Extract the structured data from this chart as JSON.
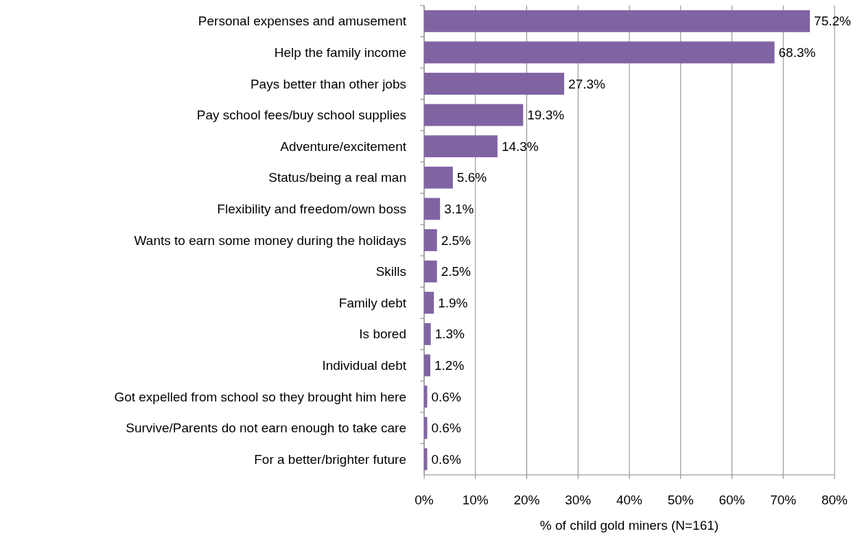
{
  "chart_data": {
    "type": "bar",
    "orientation": "horizontal",
    "xlabel": "% of child gold miners (N=161)",
    "categories": [
      "Personal expenses and amusement",
      "Help the family income",
      "Pays better than other jobs",
      "Pay school fees/buy school supplies",
      "Adventure/excitement",
      "Status/being a real man",
      "Flexibility and freedom/own boss",
      "Wants to earn some money during the holidays",
      "Skills",
      "Family debt",
      "Is bored",
      "Individual debt",
      "Got expelled from school so they brought him here",
      "Survive/Parents do not earn enough to take care",
      "For a better/brighter future"
    ],
    "values": [
      75.2,
      68.3,
      27.3,
      19.3,
      14.3,
      5.6,
      3.1,
      2.5,
      2.5,
      1.9,
      1.3,
      1.2,
      0.6,
      0.6,
      0.6
    ],
    "value_labels": [
      "75.2%",
      "68.3%",
      "27.3%",
      "19.3%",
      "14.3%",
      "5.6%",
      "3.1%",
      "2.5%",
      "2.5%",
      "1.9%",
      "1.3%",
      "1.2%",
      "0.6%",
      "0.6%",
      "0.6%"
    ],
    "color": "#8064a2",
    "xlim": [
      0,
      80
    ],
    "xticks": [
      {
        "value": 0,
        "label": "0%"
      },
      {
        "value": 10,
        "label": "10%"
      },
      {
        "value": 20,
        "label": "20%"
      },
      {
        "value": 30,
        "label": "30%"
      },
      {
        "value": 40,
        "label": "40%"
      },
      {
        "value": 50,
        "label": "50%"
      },
      {
        "value": 60,
        "label": "60%"
      },
      {
        "value": 70,
        "label": "70%"
      },
      {
        "value": 80,
        "label": "80%"
      }
    ],
    "grid": "x"
  }
}
